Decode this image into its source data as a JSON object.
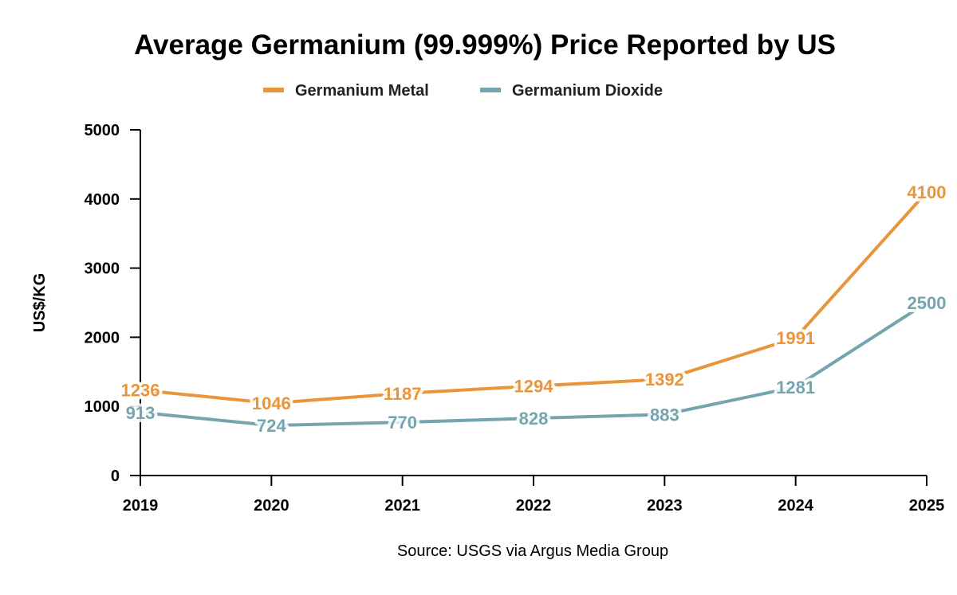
{
  "chart_data": {
    "type": "line",
    "title": "Average Germanium (99.999%) Price Reported by US",
    "ylabel": "US$/KG",
    "xlabel": "",
    "source": "Source: USGS via Argus Media Group",
    "x": [
      "2019",
      "2020",
      "2021",
      "2022",
      "2023",
      "2024",
      "2025"
    ],
    "ylim": [
      0,
      5000
    ],
    "yticks": [
      0,
      1000,
      2000,
      3000,
      4000,
      5000
    ],
    "grid": false,
    "legend_position": "top",
    "series": [
      {
        "name": "Germanium Metal",
        "color": "#E8963C",
        "values": [
          1236,
          1046,
          1187,
          1294,
          1392,
          1991,
          4100
        ]
      },
      {
        "name": "Germanium Dioxide",
        "color": "#74A5AE",
        "values": [
          913,
          724,
          770,
          828,
          883,
          1281,
          2500
        ]
      }
    ]
  }
}
